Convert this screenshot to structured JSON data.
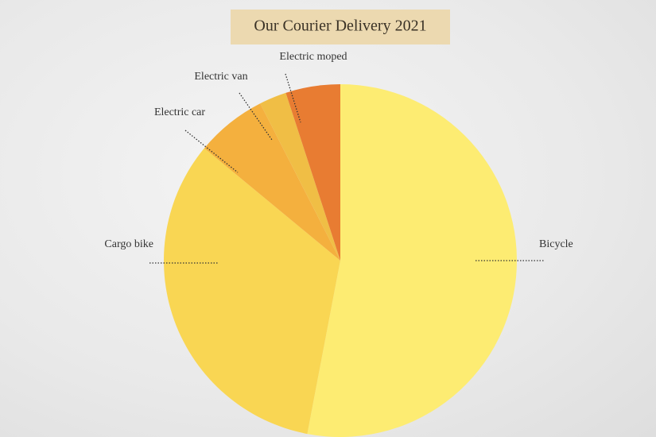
{
  "chart_data": {
    "type": "pie",
    "title": "Our Courier Delivery 2021",
    "categories": [
      "Bicycle",
      "Cargo bike",
      "Electric car",
      "Electric van",
      "Electric moped"
    ],
    "values": [
      53,
      33,
      6.5,
      2.5,
      5
    ],
    "colors": [
      "#fdec72",
      "#f9d653",
      "#f4b03e",
      "#f0be45",
      "#e87c32"
    ]
  }
}
